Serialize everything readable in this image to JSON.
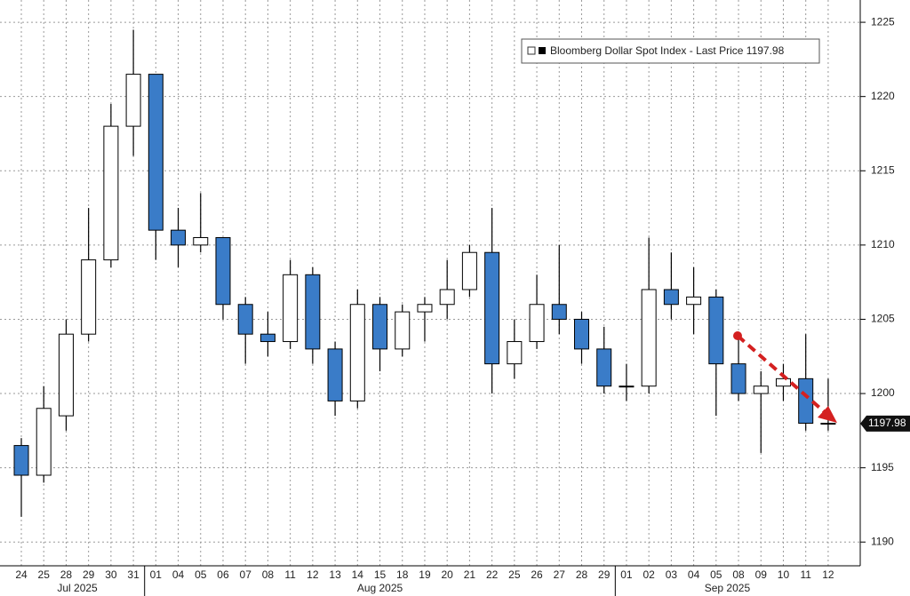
{
  "chart_data": {
    "type": "candlestick",
    "legend": {
      "name": "Bloomberg Dollar Spot Index - Last Price",
      "corner": "top-right"
    },
    "last_value": 1197.98,
    "months": [
      "Jul 2025",
      "Aug 2025",
      "Sep 2025"
    ],
    "categories": [
      "24",
      "25",
      "28",
      "29",
      "30",
      "31",
      "01",
      "04",
      "05",
      "06",
      "07",
      "08",
      "11",
      "12",
      "13",
      "14",
      "15",
      "18",
      "19",
      "20",
      "21",
      "22",
      "25",
      "26",
      "27",
      "28",
      "29",
      "01",
      "02",
      "03",
      "04",
      "05",
      "08",
      "09",
      "10",
      "11",
      "12"
    ],
    "open": [
      1196.5,
      1194.5,
      1198.5,
      1204,
      1209,
      1218,
      1221.5,
      1211,
      1210,
      1210.5,
      1206,
      1204,
      1203.5,
      1208,
      1203,
      1199.5,
      1206,
      1203,
      1205.5,
      1206,
      1207,
      1209.5,
      1202,
      1203.5,
      1206,
      1205,
      1203,
      1200.5,
      1200.5,
      1207,
      1206,
      1206.5,
      1202,
      1200,
      1200.5,
      1201,
      1198
    ],
    "high": [
      1197,
      1200.5,
      1205,
      1212.5,
      1219.5,
      1224.5,
      1221.5,
      1212.5,
      1213.5,
      1210.5,
      1206.5,
      1205.5,
      1209,
      1208.5,
      1203.5,
      1207,
      1206.5,
      1206,
      1206.5,
      1209,
      1210,
      1212.5,
      1205,
      1208,
      1210,
      1205.5,
      1204.5,
      1202,
      1210.5,
      1209.5,
      1208.5,
      1207,
      1204,
      1201.5,
      1202,
      1204,
      1201
    ],
    "low": [
      1191.7,
      1194,
      1197.5,
      1203.5,
      1208.5,
      1216,
      1209,
      1208.5,
      1209.5,
      1205,
      1202,
      1202.5,
      1203,
      1202,
      1198.5,
      1199,
      1201.5,
      1202.5,
      1203.5,
      1205,
      1206.5,
      1200,
      1201,
      1203,
      1204,
      1202,
      1200,
      1199.5,
      1200,
      1205,
      1204,
      1198.5,
      1199.5,
      1196,
      1199.5,
      1197.5,
      1197.5
    ],
    "close": [
      1194.5,
      1199,
      1204,
      1209,
      1218,
      1221.5,
      1211,
      1210,
      1210.5,
      1206,
      1204,
      1203.5,
      1208,
      1203,
      1199.5,
      1206,
      1203,
      1205.5,
      1206,
      1207,
      1209.5,
      1202,
      1203.5,
      1206,
      1205,
      1203,
      1200.5,
      1200.5,
      1207,
      1206,
      1206.5,
      1202,
      1200,
      1200.5,
      1201,
      1198,
      1197.98
    ],
    "up_color": "#ffffff",
    "down_color": "#3a7cc8",
    "outline_color": "#000000",
    "ylim": [
      1188.4,
      1226.5
    ],
    "yticks": [
      1190,
      1195,
      1200,
      1205,
      1210,
      1215,
      1220,
      1225
    ],
    "grid": true
  }
}
